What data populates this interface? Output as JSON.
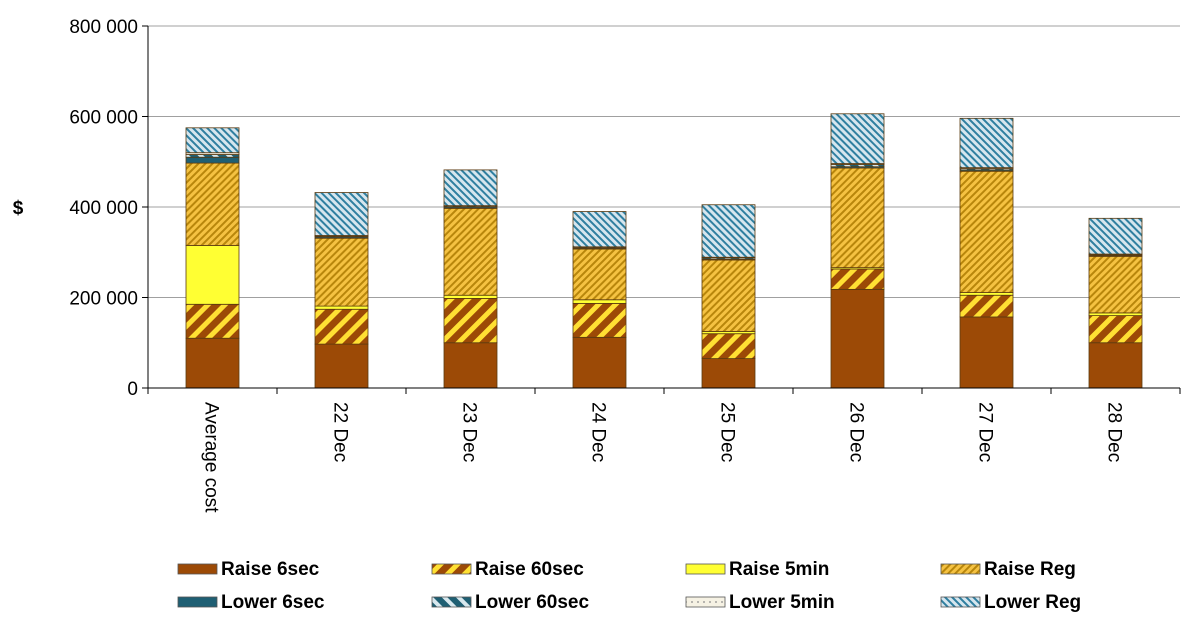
{
  "chart_data": {
    "type": "bar",
    "stacked": true,
    "categories": [
      "Average cost",
      "22 Dec",
      "23 Dec",
      "24 Dec",
      "25 Dec",
      "26 Dec",
      "27 Dec",
      "28 Dec"
    ],
    "ylabel": "$",
    "xlabel": "",
    "ylim": [
      0,
      800000
    ],
    "yticks": [
      0,
      200000,
      400000,
      600000,
      800000
    ],
    "ytick_labels": [
      "0",
      "200 000",
      "400 000",
      "600 000",
      "800 000"
    ],
    "grid": true,
    "legend_position": "bottom",
    "series": [
      {
        "name": "Raise 6sec",
        "color": "#9C4A06",
        "pattern": "solid",
        "values": [
          110000,
          97000,
          100000,
          112000,
          65000,
          218000,
          157000,
          100000
        ]
      },
      {
        "name": "Raise 60sec",
        "color": "#9C4A06",
        "pattern": "stripe-yellow",
        "values": [
          75000,
          77000,
          98000,
          75000,
          55000,
          45000,
          48000,
          60000
        ]
      },
      {
        "name": "Raise 5min",
        "color": "#FFFF33",
        "pattern": "solid",
        "values": [
          130000,
          7000,
          7000,
          8000,
          5000,
          3000,
          6000,
          6000
        ]
      },
      {
        "name": "Raise Reg",
        "color": "#E8B020",
        "pattern": "fine-stripe",
        "values": [
          182000,
          150000,
          192000,
          112000,
          158000,
          220000,
          268000,
          125000
        ]
      },
      {
        "name": "Lower 6sec",
        "color": "#1F5F73",
        "pattern": "solid",
        "values": [
          13000,
          3000,
          3000,
          2000,
          2000,
          3000,
          3000,
          2000
        ]
      },
      {
        "name": "Lower 60sec",
        "color": "#1F5F73",
        "pattern": "stripe-light",
        "values": [
          6000,
          2000,
          2000,
          2000,
          3000,
          5000,
          3000,
          2000
        ]
      },
      {
        "name": "Lower 5min",
        "color": "#F4F0E0",
        "pattern": "dots",
        "values": [
          4000,
          1000,
          1000,
          1000,
          1000,
          2000,
          2000,
          1000
        ]
      },
      {
        "name": "Lower Reg",
        "color": "#2F7FA0",
        "pattern": "fine-stripe-blue",
        "values": [
          55000,
          95000,
          79000,
          78000,
          116000,
          110000,
          109000,
          79000
        ]
      }
    ]
  }
}
